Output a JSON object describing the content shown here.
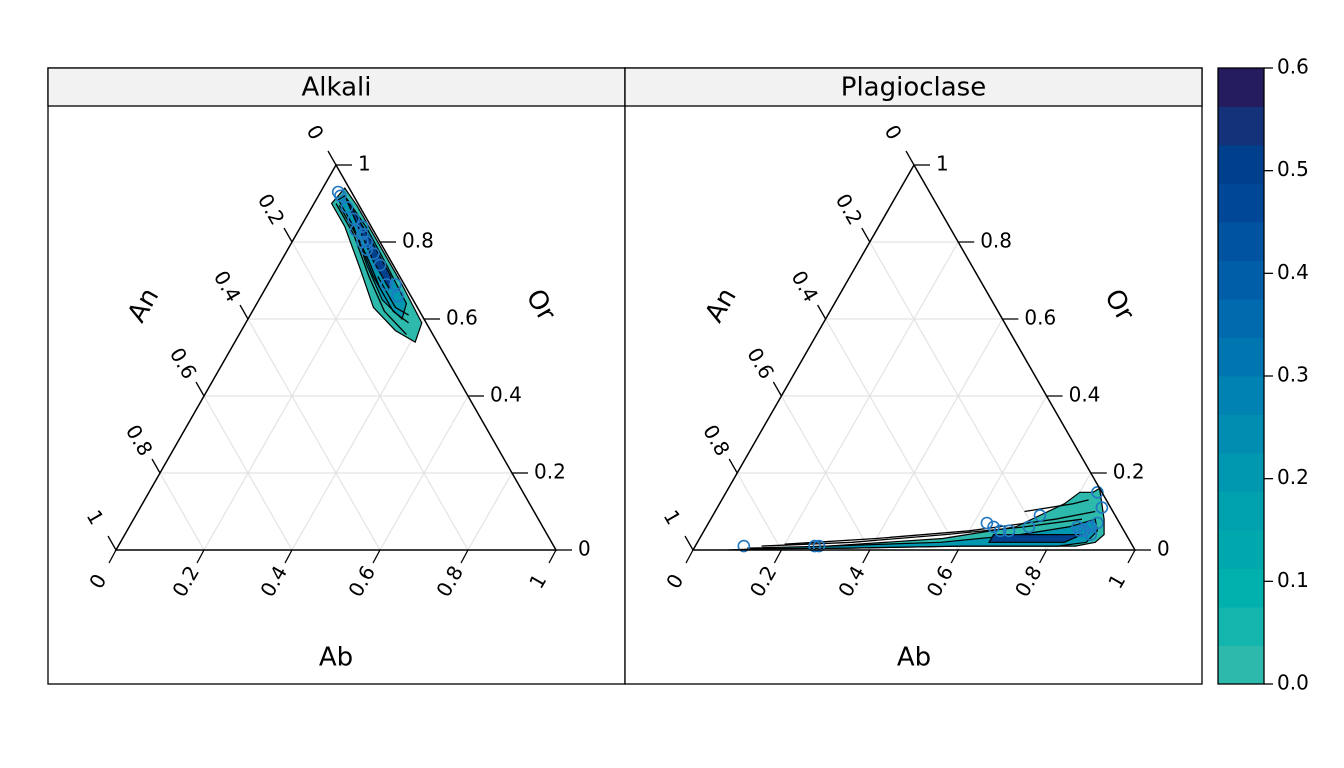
{
  "chart_data": [
    {
      "type": "ternary",
      "title": "Alkali",
      "axes": {
        "left": {
          "label": "An",
          "ticks": [
            "0",
            "0.2",
            "0.4",
            "0.6",
            "0.8",
            "1"
          ]
        },
        "right": {
          "label": "Or",
          "ticks": [
            "1",
            "0.8",
            "0.6",
            "0.4",
            "0.2",
            "0"
          ]
        },
        "bottom": {
          "label": "Ab",
          "ticks": [
            "0",
            "0.2",
            "0.4",
            "0.6",
            "0.8",
            "1"
          ]
        }
      },
      "grid": true,
      "points": [
        {
          "ab": 0.04,
          "an": 0.03,
          "or": 0.93
        },
        {
          "ab": 0.05,
          "an": 0.03,
          "or": 0.92
        },
        {
          "ab": 0.08,
          "an": 0.03,
          "or": 0.89
        },
        {
          "ab": 0.11,
          "an": 0.03,
          "or": 0.86
        },
        {
          "ab": 0.13,
          "an": 0.04,
          "or": 0.83
        },
        {
          "ab": 0.14,
          "an": 0.02,
          "or": 0.84
        },
        {
          "ab": 0.15,
          "an": 0.03,
          "or": 0.82
        },
        {
          "ab": 0.16,
          "an": 0.04,
          "or": 0.8
        },
        {
          "ab": 0.17,
          "an": 0.03,
          "or": 0.8
        },
        {
          "ab": 0.18,
          "an": 0.04,
          "or": 0.78
        },
        {
          "ab": 0.2,
          "an": 0.03,
          "or": 0.77
        },
        {
          "ab": 0.23,
          "an": 0.03,
          "or": 0.74
        },
        {
          "ab": 0.27,
          "an": 0.04,
          "or": 0.69
        },
        {
          "ab": 0.29,
          "an": 0.02,
          "or": 0.69
        },
        {
          "ab": 0.31,
          "an": 0.03,
          "or": 0.66
        }
      ],
      "contour_regions": [
        {
          "level": 0.0,
          "polygon": [
            [
              0.04,
              0.06,
              0.9
            ],
            [
              0.1,
              0.06,
              0.84
            ],
            [
              0.19,
              0.08,
              0.73
            ],
            [
              0.27,
              0.1,
              0.63
            ],
            [
              0.35,
              0.08,
              0.57
            ],
            [
              0.41,
              0.05,
              0.54
            ],
            [
              0.4,
              0.01,
              0.59
            ],
            [
              0.3,
              0.005,
              0.695
            ],
            [
              0.2,
              0.005,
              0.795
            ],
            [
              0.1,
              0.005,
              0.895
            ],
            [
              0.05,
              0.01,
              0.94
            ]
          ]
        },
        {
          "level": 0.2,
          "polygon": [
            [
              0.05,
              0.04,
              0.91
            ],
            [
              0.12,
              0.04,
              0.84
            ],
            [
              0.2,
              0.06,
              0.74
            ],
            [
              0.28,
              0.07,
              0.65
            ],
            [
              0.35,
              0.05,
              0.6
            ],
            [
              0.34,
              0.02,
              0.64
            ],
            [
              0.25,
              0.015,
              0.735
            ],
            [
              0.15,
              0.012,
              0.838
            ],
            [
              0.06,
              0.02,
              0.92
            ]
          ]
        },
        {
          "level": 0.5,
          "polygon": [
            [
              0.06,
              0.02,
              0.92
            ],
            [
              0.13,
              0.03,
              0.84
            ],
            [
              0.21,
              0.04,
              0.75
            ],
            [
              0.28,
              0.04,
              0.68
            ],
            [
              0.27,
              0.02,
              0.71
            ],
            [
              0.18,
              0.018,
              0.802
            ],
            [
              0.09,
              0.02,
              0.89
            ]
          ]
        }
      ],
      "contour_lines": [
        [
          [
            0.05,
            0.05,
            0.9
          ],
          [
            0.13,
            0.05,
            0.82
          ],
          [
            0.22,
            0.07,
            0.71
          ],
          [
            0.3,
            0.08,
            0.62
          ],
          [
            0.38,
            0.06,
            0.56
          ]
        ],
        [
          [
            0.06,
            0.045,
            0.895
          ],
          [
            0.14,
            0.045,
            0.815
          ],
          [
            0.23,
            0.06,
            0.71
          ],
          [
            0.32,
            0.06,
            0.62
          ],
          [
            0.37,
            0.04,
            0.59
          ]
        ],
        [
          [
            0.1,
            0.04,
            0.86
          ],
          [
            0.2,
            0.05,
            0.75
          ],
          [
            0.26,
            0.06,
            0.68
          ]
        ],
        [
          [
            0.24,
            0.05,
            0.71
          ],
          [
            0.32,
            0.05,
            0.63
          ],
          [
            0.36,
            0.03,
            0.61
          ]
        ]
      ]
    },
    {
      "type": "ternary",
      "title": "Plagioclase",
      "axes": {
        "left": {
          "label": "An",
          "ticks": [
            "0",
            "0.2",
            "0.4",
            "0.6",
            "0.8",
            "1"
          ]
        },
        "right": {
          "label": "Or",
          "ticks": [
            "1",
            "0.8",
            "0.6",
            "0.4",
            "0.2",
            "0"
          ]
        },
        "bottom": {
          "label": "Ab",
          "ticks": [
            "0",
            "0.2",
            "0.4",
            "0.6",
            "0.8",
            "1"
          ]
        }
      },
      "grid": true,
      "points": [
        {
          "ab": 0.11,
          "an": 0.88,
          "or": 0.01
        },
        {
          "ab": 0.27,
          "an": 0.72,
          "or": 0.01
        },
        {
          "ab": 0.28,
          "an": 0.71,
          "or": 0.01
        },
        {
          "ab": 0.63,
          "an": 0.3,
          "or": 0.07
        },
        {
          "ab": 0.65,
          "an": 0.29,
          "or": 0.06
        },
        {
          "ab": 0.67,
          "an": 0.28,
          "or": 0.05
        },
        {
          "ab": 0.69,
          "an": 0.26,
          "or": 0.05
        },
        {
          "ab": 0.73,
          "an": 0.21,
          "or": 0.06
        },
        {
          "ab": 0.74,
          "an": 0.17,
          "or": 0.09
        },
        {
          "ab": 0.84,
          "an": 0.1,
          "or": 0.06
        },
        {
          "ab": 0.85,
          "an": 0.1,
          "or": 0.05
        },
        {
          "ab": 0.86,
          "an": 0.09,
          "or": 0.05
        },
        {
          "ab": 0.87,
          "an": 0.07,
          "or": 0.06
        },
        {
          "ab": 0.88,
          "an": 0.08,
          "or": 0.04
        },
        {
          "ab": 0.88,
          "an": 0.05,
          "or": 0.07
        },
        {
          "ab": 0.87,
          "an": 0.02,
          "or": 0.11
        },
        {
          "ab": 0.84,
          "an": 0.01,
          "or": 0.15
        }
      ],
      "contour_regions": [
        {
          "level": 0.0,
          "polygon": [
            [
              0.08,
              0.92,
              0.0
            ],
            [
              0.3,
              0.69,
              0.01
            ],
            [
              0.55,
              0.42,
              0.03
            ],
            [
              0.7,
              0.24,
              0.06
            ],
            [
              0.78,
              0.1,
              0.12
            ],
            [
              0.8,
              0.05,
              0.15
            ],
            [
              0.83,
              0.02,
              0.15
            ],
            [
              0.84,
              0.0,
              0.16
            ],
            [
              0.89,
              0.03,
              0.08
            ],
            [
              0.91,
              0.05,
              0.04
            ],
            [
              0.9,
              0.08,
              0.02
            ],
            [
              0.86,
              0.13,
              0.01
            ],
            [
              0.6,
              0.39,
              0.01
            ],
            [
              0.35,
              0.645,
              0.005
            ],
            [
              0.15,
              0.847,
              0.003
            ]
          ]
        },
        {
          "level": 0.2,
          "polygon": [
            [
              0.12,
              0.875,
              0.005
            ],
            [
              0.3,
              0.69,
              0.01
            ],
            [
              0.55,
              0.43,
              0.02
            ],
            [
              0.72,
              0.24,
              0.04
            ],
            [
              0.82,
              0.12,
              0.06
            ],
            [
              0.87,
              0.05,
              0.08
            ],
            [
              0.89,
              0.06,
              0.05
            ],
            [
              0.88,
              0.1,
              0.02
            ],
            [
              0.82,
              0.17,
              0.01
            ],
            [
              0.6,
              0.39,
              0.01
            ],
            [
              0.35,
              0.645,
              0.005
            ],
            [
              0.15,
              0.847,
              0.003
            ]
          ]
        },
        {
          "level": 0.5,
          "polygon": [
            [
              0.66,
              0.3,
              0.04
            ],
            [
              0.74,
              0.22,
              0.04
            ],
            [
              0.82,
              0.14,
              0.04
            ],
            [
              0.86,
              0.1,
              0.04
            ],
            [
              0.83,
              0.15,
              0.02
            ],
            [
              0.74,
              0.24,
              0.02
            ],
            [
              0.66,
              0.32,
              0.02
            ]
          ]
        }
      ],
      "contour_lines": [
        [
          [
            0.15,
            0.84,
            0.01
          ],
          [
            0.35,
            0.63,
            0.02
          ],
          [
            0.55,
            0.41,
            0.04
          ],
          [
            0.72,
            0.22,
            0.06
          ],
          [
            0.84,
            0.08,
            0.08
          ]
        ],
        [
          [
            0.2,
            0.785,
            0.015
          ],
          [
            0.4,
            0.57,
            0.03
          ],
          [
            0.6,
            0.35,
            0.05
          ],
          [
            0.78,
            0.14,
            0.08
          ],
          [
            0.86,
            0.04,
            0.1
          ]
        ],
        [
          [
            0.7,
            0.2,
            0.1
          ],
          [
            0.8,
            0.08,
            0.12
          ],
          [
            0.83,
            0.04,
            0.13
          ]
        ]
      ]
    }
  ],
  "colorkey": {
    "ticks": [
      "0.0",
      "0.1",
      "0.2",
      "0.3",
      "0.4",
      "0.5",
      "0.6"
    ],
    "range": [
      0.0,
      0.6
    ],
    "colors": [
      "#2db9ab",
      "#14b5ad",
      "#00b0ad",
      "#00a8ad",
      "#00a1ae",
      "#0097b0",
      "#008db1",
      "#0082b2",
      "#0076b1",
      "#006aae",
      "#005ea8",
      "#0053a0",
      "#004897",
      "#003f8c",
      "#14327a",
      "#251b5f"
    ]
  }
}
